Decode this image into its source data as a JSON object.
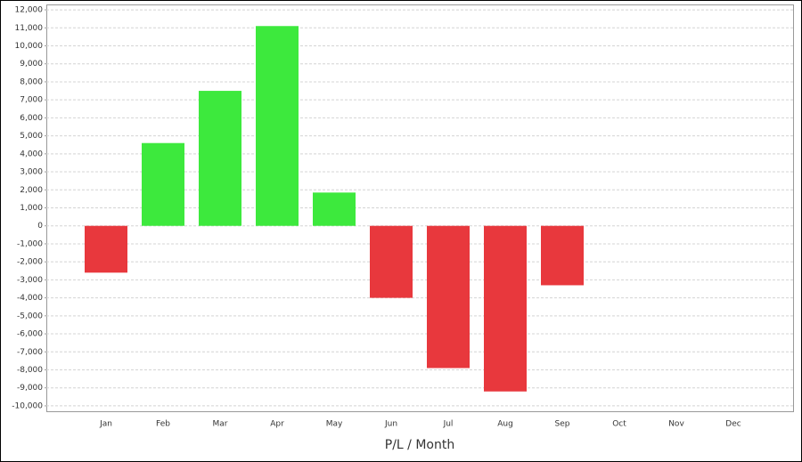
{
  "chart_data": {
    "type": "bar",
    "x_label": "P/L / Month",
    "categories": [
      "Jan",
      "Feb",
      "Mar",
      "Apr",
      "May",
      "Jun",
      "Jul",
      "Aug",
      "Sep",
      "Oct",
      "Nov",
      "Dec"
    ],
    "values": [
      -2600,
      4600,
      7500,
      11100,
      1850,
      -4000,
      -7900,
      -9200,
      -3300,
      null,
      null,
      null
    ],
    "positive_color": "#3de93d",
    "negative_color": "#e8383d",
    "ylim": [
      -10300,
      12300
    ],
    "yticks": [
      {
        "value": 12000,
        "label": "12,000"
      },
      {
        "value": 11000,
        "label": "11,000"
      },
      {
        "value": 10000,
        "label": "10,000"
      },
      {
        "value": 9000,
        "label": "9,000"
      },
      {
        "value": 8000,
        "label": "8,000"
      },
      {
        "value": 7000,
        "label": "7,000"
      },
      {
        "value": 6000,
        "label": "6,000"
      },
      {
        "value": 5000,
        "label": "5,000"
      },
      {
        "value": 4000,
        "label": "4,000"
      },
      {
        "value": 3000,
        "label": "3,000"
      },
      {
        "value": 2000,
        "label": "2,000"
      },
      {
        "value": 1000,
        "label": "1,000"
      },
      0,
      {
        "value": -1000,
        "label": "-1,000"
      },
      {
        "value": -2000,
        "label": "-2,000"
      },
      {
        "value": -3000,
        "label": "-3,000"
      },
      {
        "value": -4000,
        "label": "-4,000"
      },
      {
        "value": -5000,
        "label": "-5,000"
      },
      {
        "value": -6000,
        "label": "-6,000"
      },
      {
        "value": -7000,
        "label": "-7,000"
      },
      {
        "value": -8000,
        "label": "-8,000"
      },
      {
        "value": -9000,
        "label": "-9,000"
      },
      {
        "value": -10000,
        "label": "-10,000"
      }
    ],
    "grid": true
  }
}
